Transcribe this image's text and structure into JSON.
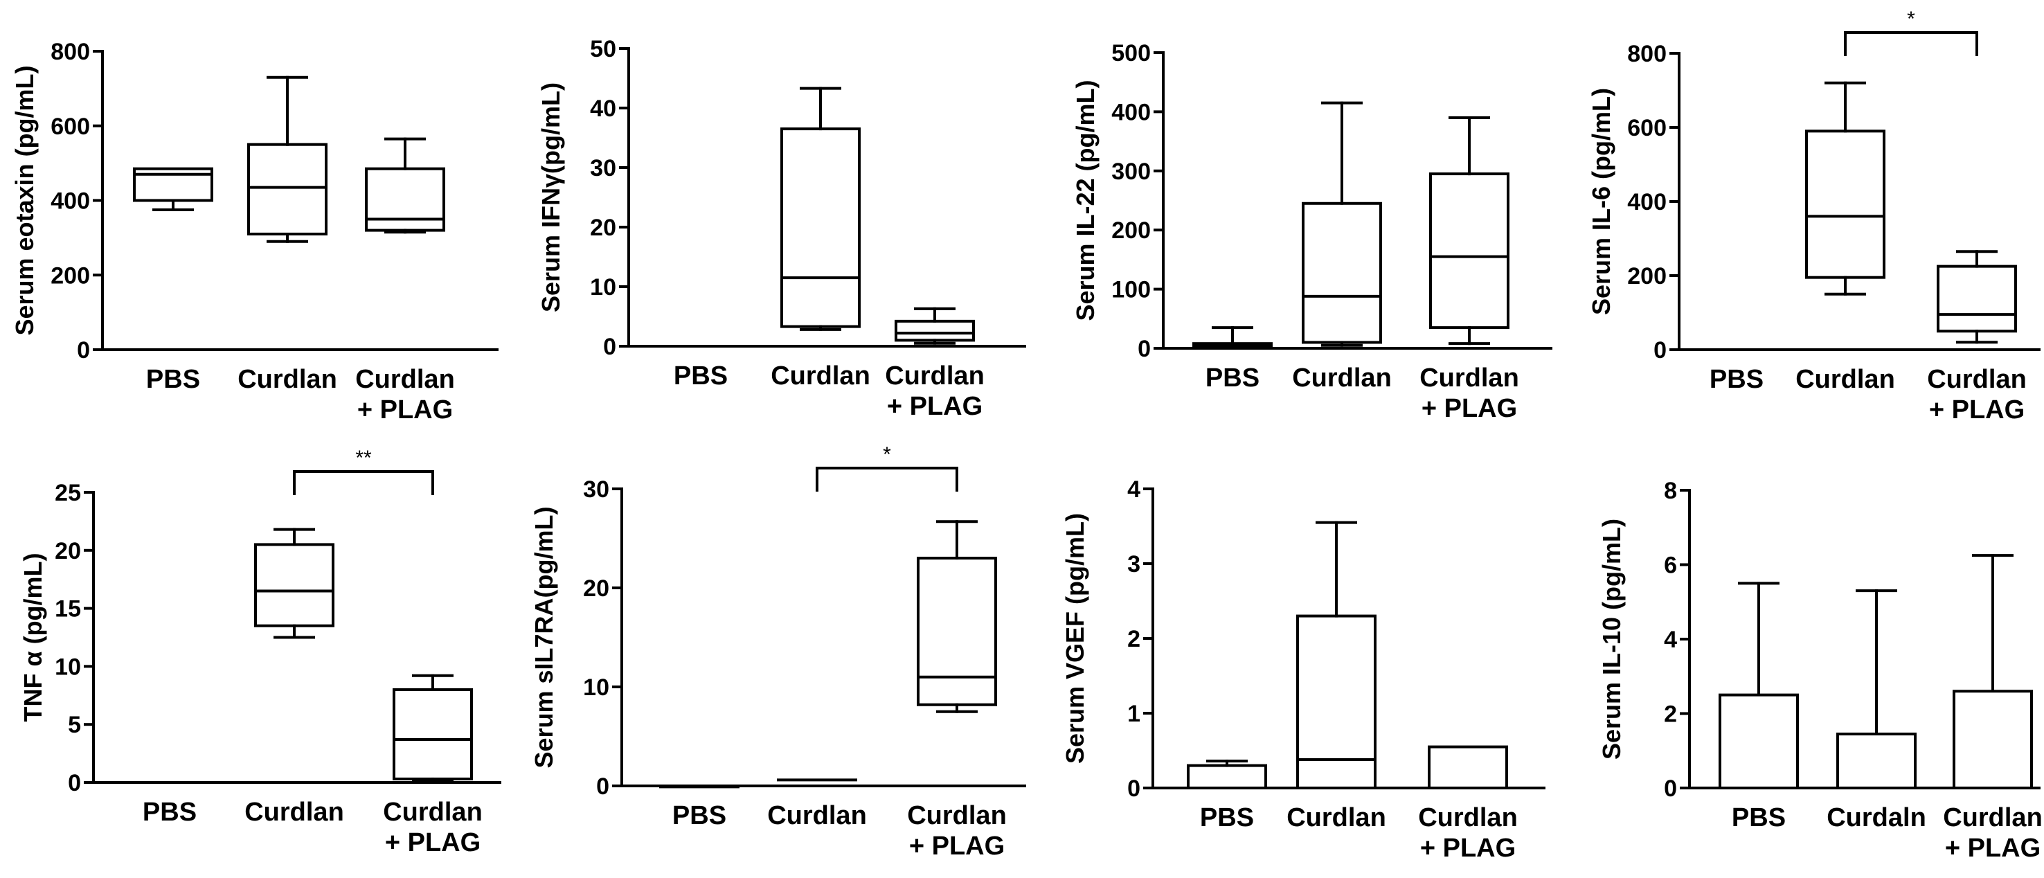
{
  "chart_data": [
    {
      "type": "boxplot",
      "ylabel": "Serum eotaxin (pg/mL)",
      "ylim": [
        0,
        800
      ],
      "yticks": [
        "0",
        "200",
        "400",
        "600",
        "800"
      ],
      "categories": [
        "PBS",
        "Curdlan",
        "Curdlan\n+ PLAG"
      ],
      "boxes": [
        {
          "min": 375,
          "q1": 400,
          "median": 470,
          "q3": 485,
          "max": 485
        },
        {
          "min": 290,
          "q1": 310,
          "median": 435,
          "q3": 550,
          "max": 730
        },
        {
          "min": 315,
          "q1": 320,
          "median": 350,
          "q3": 485,
          "max": 565
        }
      ],
      "significance": []
    },
    {
      "type": "boxplot",
      "ylabel": "Serum IFNγ(pg/mL)",
      "ylim": [
        0,
        50
      ],
      "yticks": [
        "0",
        "10",
        "20",
        "30",
        "40",
        "50"
      ],
      "categories": [
        "PBS",
        "Curdlan",
        "Curdlan\n+ PLAG"
      ],
      "boxes": [
        {
          "min": 0,
          "q1": 0,
          "median": 0,
          "q3": 0,
          "max": 0
        },
        {
          "min": 2.8,
          "q1": 3.3,
          "median": 11.5,
          "q3": 36.5,
          "max": 43.3
        },
        {
          "min": 0.5,
          "q1": 1.0,
          "median": 2.2,
          "q3": 4.2,
          "max": 6.3
        }
      ],
      "significance": []
    },
    {
      "type": "boxplot",
      "ylabel": "Serum IL-22 (pg/mL)",
      "ylim": [
        0,
        500
      ],
      "yticks": [
        "0",
        "100",
        "200",
        "300",
        "400",
        "500"
      ],
      "categories": [
        "PBS",
        "Curdlan",
        "Curdlan\n+ PLAG"
      ],
      "boxes": [
        {
          "min": 2,
          "q1": 2,
          "median": 5,
          "q3": 8,
          "max": 35
        },
        {
          "min": 5,
          "q1": 10,
          "median": 88,
          "q3": 245,
          "max": 415
        },
        {
          "min": 8,
          "q1": 35,
          "median": 155,
          "q3": 295,
          "max": 390
        }
      ],
      "significance": []
    },
    {
      "type": "boxplot",
      "ylabel": "Serum IL-6 (pg/mL)",
      "ylim": [
        0,
        800
      ],
      "yticks": [
        "0",
        "200",
        "400",
        "600",
        "800"
      ],
      "categories": [
        "PBS",
        "Curdlan",
        "Curdlan\n+ PLAG"
      ],
      "boxes": [
        {
          "min": 0,
          "q1": 0,
          "median": 0,
          "q3": 0,
          "max": 0
        },
        {
          "min": 150,
          "q1": 195,
          "median": 360,
          "q3": 590,
          "max": 720
        },
        {
          "min": 20,
          "q1": 50,
          "median": 95,
          "q3": 225,
          "max": 265
        }
      ],
      "significance": [
        {
          "from": 1,
          "to": 2,
          "label": "*"
        }
      ]
    },
    {
      "type": "boxplot",
      "ylabel": "TNF α (pg/mL)",
      "ylim": [
        0,
        25
      ],
      "yticks": [
        "0",
        "5",
        "10",
        "15",
        "20",
        "25"
      ],
      "categories": [
        "PBS",
        "Curdlan",
        "Curdlan\n+ PLAG"
      ],
      "boxes": [
        {
          "min": 0,
          "q1": 0,
          "median": 0,
          "q3": 0,
          "max": 0
        },
        {
          "min": 12.5,
          "q1": 13.5,
          "median": 16.5,
          "q3": 20.5,
          "max": 21.8
        },
        {
          "min": 0.2,
          "q1": 0.3,
          "median": 3.7,
          "q3": 8.0,
          "max": 9.2
        }
      ],
      "significance": [
        {
          "from": 1,
          "to": 2,
          "label": "**"
        }
      ]
    },
    {
      "type": "boxplot",
      "ylabel": "Serum sIL7RA(pg/mL)",
      "ylim": [
        0,
        30
      ],
      "yticks": [
        "0",
        "10",
        "20",
        "30"
      ],
      "categories": [
        "PBS",
        "Curdlan",
        "Curdlan\n+ PLAG"
      ],
      "boxes": [
        {
          "min": -0.1,
          "q1": -0.1,
          "median": -0.1,
          "q3": -0.1,
          "max": -0.1
        },
        {
          "min": 0.6,
          "q1": 0.6,
          "median": 0.6,
          "q3": 0.6,
          "max": 0.6
        },
        {
          "min": 7.5,
          "q1": 8.2,
          "median": 11.0,
          "q3": 23.0,
          "max": 26.7
        }
      ],
      "significance": [
        {
          "from": 1,
          "to": 2,
          "label": "*"
        }
      ]
    },
    {
      "type": "boxplot",
      "ylabel": "Serum VGEF (pg/mL)",
      "ylim": [
        0,
        4
      ],
      "yticks": [
        "0",
        "1",
        "2",
        "3",
        "4"
      ],
      "categories": [
        "PBS",
        "Curdlan",
        "Curdlan\n+ PLAG"
      ],
      "boxes": [
        {
          "min": 0,
          "q1": 0,
          "median": 0,
          "q3": 0.3,
          "max": 0.36
        },
        {
          "min": 0,
          "q1": 0,
          "median": 0.38,
          "q3": 2.3,
          "max": 3.55
        },
        {
          "min": 0,
          "q1": 0,
          "median": 0,
          "q3": 0.55,
          "max": 0.55
        }
      ],
      "significance": []
    },
    {
      "type": "bar",
      "ylabel": "Serum IL-10 (pg/mL)",
      "ylim": [
        0,
        8
      ],
      "yticks": [
        "0",
        "2",
        "4",
        "6",
        "8"
      ],
      "categories": [
        "PBS",
        "Curdaln",
        "Curdlan\n+ PLAG"
      ],
      "values": [
        2.5,
        1.45,
        2.6
      ],
      "errors_upper": [
        5.5,
        5.3,
        6.25
      ],
      "significance": []
    }
  ]
}
